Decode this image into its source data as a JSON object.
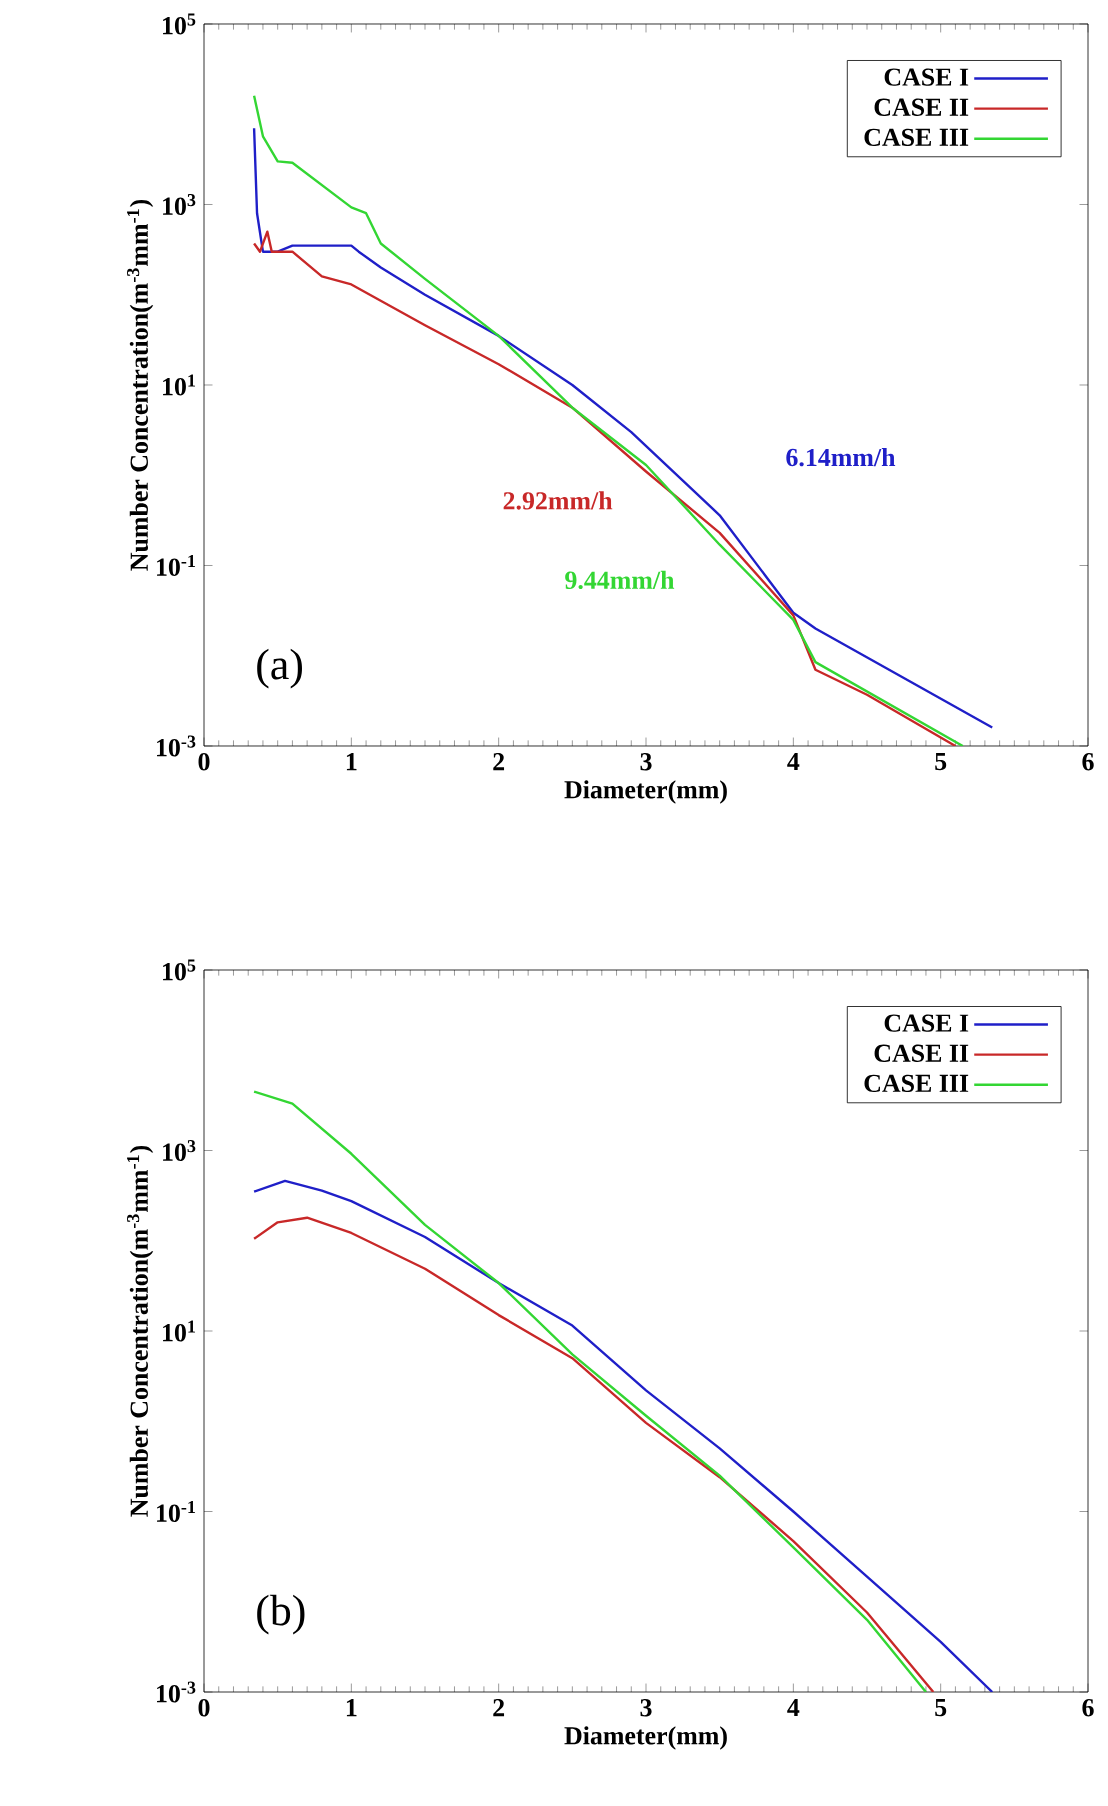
{
  "chart_data": [
    {
      "type": "line",
      "xlabel": "Diameter(mm)",
      "ylabel": "Number Concentration(m$^{-3}$mm$^{-1}$)",
      "log": "y",
      "xlim": [
        0,
        6
      ],
      "ylim": [
        0.001,
        100000
      ],
      "xticks": [
        0,
        1,
        2,
        3,
        4,
        5,
        6
      ],
      "yticks": [
        {
          "value": 0.001,
          "label": "10$^{-3}$"
        },
        {
          "value": 0.1,
          "label": "10$^{-1}$"
        },
        {
          "value": 10,
          "label": "10$^{1}$"
        },
        {
          "value": 1000,
          "label": "10$^{3}$"
        },
        {
          "value": 100000,
          "label": "10$^{5}$"
        }
      ],
      "legend": "top right",
      "line_style": "solid",
      "series": [
        {
          "name": "CASE I",
          "color": "#1f1fc8",
          "x": [
            0.34,
            0.36,
            0.4,
            0.5,
            0.6,
            1.0,
            1.05,
            1.2,
            1.5,
            2.0,
            2.5,
            2.9,
            3.5,
            4.0,
            4.15,
            5.35
          ],
          "values": [
            7000,
            800,
            300,
            300,
            350,
            350,
            300,
            200,
            100,
            35,
            10,
            3,
            0.36,
            0.03,
            0.02,
            0.0016
          ]
        },
        {
          "name": "CASE II",
          "color": "#c82828",
          "x": [
            0.34,
            0.38,
            0.43,
            0.46,
            0.6,
            0.8,
            1.0,
            1.5,
            2.0,
            2.5,
            3.0,
            3.5,
            4.0,
            4.15,
            4.5,
            5.1
          ],
          "values": [
            370,
            300,
            500,
            300,
            300,
            160,
            130,
            46,
            17,
            5.6,
            1.1,
            0.23,
            0.028,
            0.007,
            0.0037,
            0.001
          ]
        },
        {
          "name": "CASE III",
          "color": "#33d633",
          "x": [
            0.34,
            0.4,
            0.5,
            0.6,
            1.0,
            1.1,
            1.2,
            1.5,
            2.0,
            2.5,
            3.0,
            3.5,
            4.0,
            4.15,
            5.15
          ],
          "values": [
            16000,
            5700,
            3000,
            2900,
            930,
            800,
            370,
            150,
            35,
            5.6,
            1.3,
            0.17,
            0.025,
            0.0085,
            0.001
          ]
        }
      ],
      "annotations": [
        "(a)",
        "6.14mm/h",
        "2.92mm/h",
        "9.44mm/h"
      ]
    },
    {
      "type": "line",
      "xlabel": "Diameter(mm)",
      "ylabel": "Number Concentration(m$^{-3}$mm$^{-1}$)",
      "log": "y",
      "xlim": [
        0,
        6
      ],
      "ylim": [
        0.001,
        100000
      ],
      "xticks": [
        0,
        1,
        2,
        3,
        4,
        5,
        6
      ],
      "yticks": [
        {
          "value": 0.001,
          "label": "10$^{-3}$"
        },
        {
          "value": 0.1,
          "label": "10$^{-1}$"
        },
        {
          "value": 10,
          "label": "10$^{1}$"
        },
        {
          "value": 1000,
          "label": "10$^{3}$"
        },
        {
          "value": 100000,
          "label": "10$^{5}$"
        }
      ],
      "legend": "top right",
      "line_style": "solid",
      "series": [
        {
          "name": "CASE I",
          "color": "#1f1fc8",
          "x": [
            0.34,
            0.55,
            0.8,
            1.0,
            1.5,
            2.0,
            2.5,
            3.0,
            3.5,
            4.0,
            4.5,
            5.0,
            5.35
          ],
          "values": [
            350,
            460,
            360,
            275,
            110,
            34,
            11.5,
            2.2,
            0.5,
            0.1,
            0.019,
            0.0036,
            0.001
          ]
        },
        {
          "name": "CASE II",
          "color": "#c82828",
          "x": [
            0.34,
            0.5,
            0.7,
            1.0,
            1.5,
            2.0,
            2.5,
            3.0,
            3.5,
            4.0,
            4.5,
            4.95
          ],
          "values": [
            105,
            160,
            180,
            122,
            49,
            15,
            5,
            0.96,
            0.24,
            0.047,
            0.0076,
            0.001
          ]
        },
        {
          "name": "CASE III",
          "color": "#33d633",
          "x": [
            0.34,
            0.6,
            1.0,
            1.5,
            2.0,
            2.5,
            3.0,
            3.5,
            4.0,
            4.5,
            4.9
          ],
          "values": [
            4500,
            3300,
            920,
            150,
            34,
            5.5,
            1.15,
            0.25,
            0.04,
            0.0063,
            0.001
          ]
        }
      ],
      "annotations": [
        "(b)"
      ]
    }
  ]
}
